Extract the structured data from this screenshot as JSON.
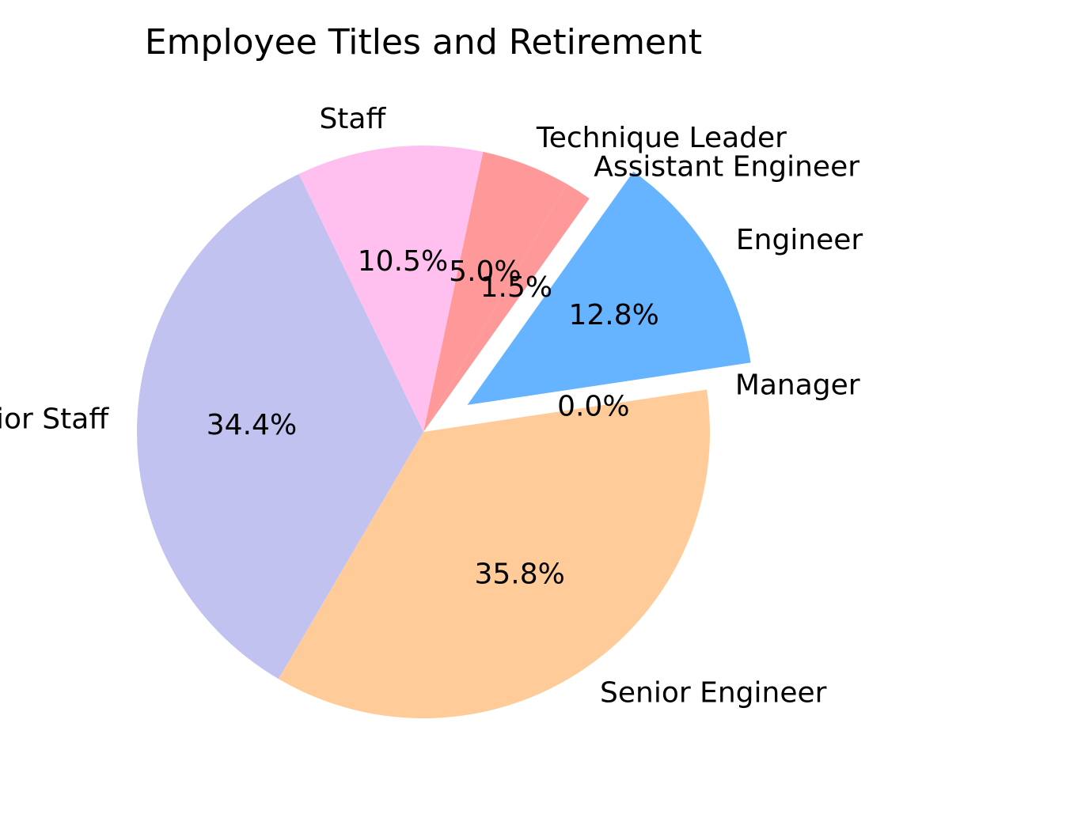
{
  "chart_data": {
    "type": "pie",
    "title": "Employee Titles and Retirement",
    "slices": [
      {
        "label": "Engineer",
        "value": 12.8,
        "pct_label": "12.8%",
        "color": "#66b3ff",
        "exploded": true
      },
      {
        "label": "Assistant Engineer",
        "value": 1.5,
        "pct_label": "1.5%",
        "color": "#ff9999",
        "exploded": false
      },
      {
        "label": "Technique Leader",
        "value": 5.0,
        "pct_label": "5.0%",
        "color": "#ff9999",
        "exploded": false
      },
      {
        "label": "Staff",
        "value": 10.5,
        "pct_label": "10.5%",
        "color": "#ffc0f0",
        "exploded": false
      },
      {
        "label": "Senior Staff",
        "value": 34.4,
        "pct_label": "34.4%",
        "color": "#c2c2f0",
        "exploded": false
      },
      {
        "label": "Senior Engineer",
        "value": 35.8,
        "pct_label": "35.8%",
        "color": "#ffcc99",
        "exploded": false
      },
      {
        "label": "Manager",
        "value": 0.0,
        "pct_label": "0.0%",
        "color": "#99ff99",
        "exploded": false
      }
    ]
  }
}
